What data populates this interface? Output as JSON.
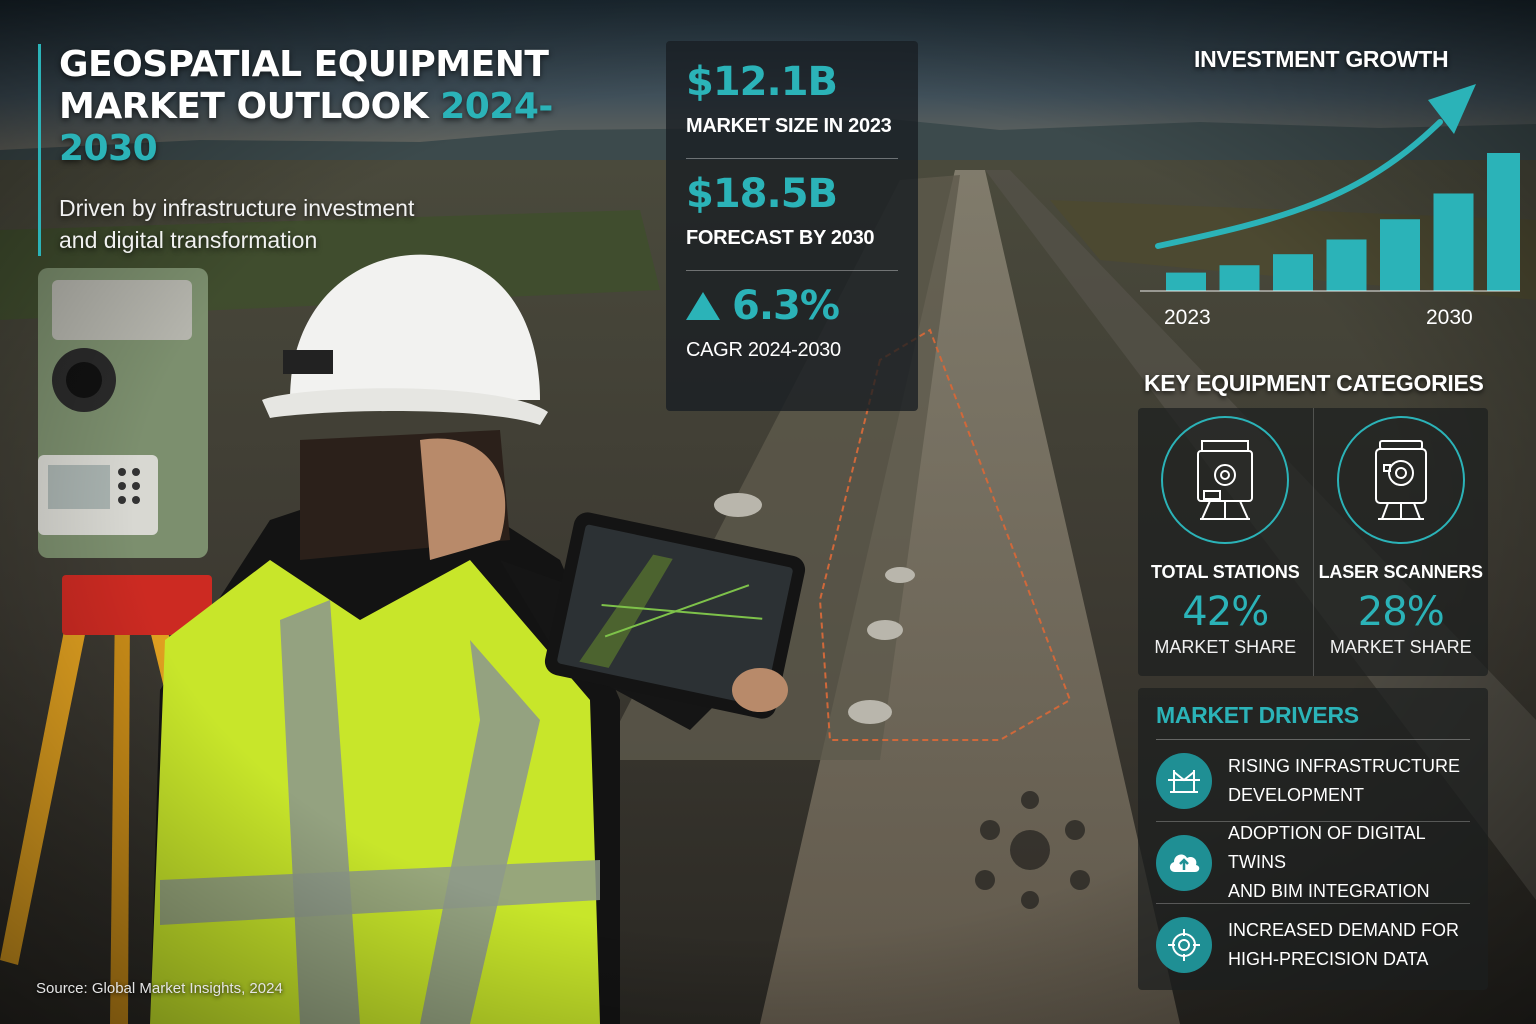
{
  "header": {
    "title_line1": "GEOSPATIAL EQUIPMENT",
    "title_line2": "MARKET OUTLOOK",
    "title_years": "2024-2030",
    "subtitle_line1": "Driven by infrastructure investment",
    "subtitle_line2": "and digital transformation"
  },
  "stats": {
    "market_size_value": "$12.1B",
    "market_size_label": "MARKET SIZE IN 2023",
    "forecast_value": "$18.5B",
    "forecast_label": "FORECAST BY 2030",
    "cagr_value": "6.3%",
    "cagr_label": "CAGR 2024-2030"
  },
  "growth": {
    "title": "INVESTMENT GROWTH",
    "start_label": "2023",
    "end_label": "2030"
  },
  "chart_data": {
    "type": "bar",
    "title": "INVESTMENT GROWTH",
    "categories": [
      "2023",
      "",
      "",
      "",
      "",
      "",
      "2030"
    ],
    "values": [
      1.0,
      1.4,
      2.0,
      2.8,
      3.9,
      5.3,
      7.5
    ],
    "color": "#2bb3b8",
    "trend_arrow": true,
    "y_axis_shown": false
  },
  "categories_section": {
    "title": "KEY EQUIPMENT CATEGORIES",
    "items": [
      {
        "name": "TOTAL STATIONS",
        "share": "42%",
        "share_label": "MARKET SHARE",
        "icon": "total-station-icon"
      },
      {
        "name": "LASER SCANNERS",
        "share": "28%",
        "share_label": "MARKET SHARE",
        "icon": "laser-scanner-icon"
      }
    ]
  },
  "drivers": {
    "title": "MARKET DRIVERS",
    "items": [
      {
        "line1": "RISING INFRASTRUCTURE",
        "line2": "DEVELOPMENT",
        "icon": "bridge-icon"
      },
      {
        "line1": "ADOPTION OF DIGITAL TWINS",
        "line2": "AND BIM INTEGRATION",
        "icon": "cloud-upload-icon"
      },
      {
        "line1": "INCREASED DEMAND FOR",
        "line2": "HIGH-PRECISION DATA",
        "icon": "target-icon"
      }
    ]
  },
  "footer": {
    "source": "Source: Global Market Insights, 2024"
  },
  "colors": {
    "accent": "#2bb3b8",
    "vest": "#c8e62a",
    "tripod": "#e0a020"
  }
}
